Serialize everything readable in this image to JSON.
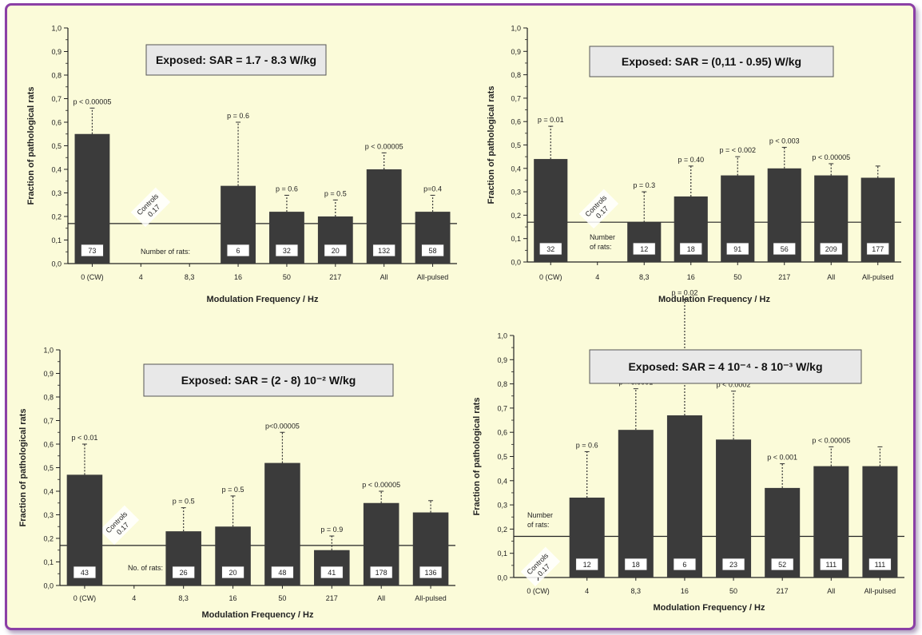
{
  "chart_data": [
    {
      "type": "bar",
      "title": "Exposed: SAR = 1.7 - 8.3  W/kg",
      "xlabel": "Modulation Frequency / Hz",
      "ylabel": "Fraction of pathological rats",
      "ylim": [
        0,
        1.0
      ],
      "yticks": [
        "0,0",
        "0,1",
        "0,2",
        "0,3",
        "0,4",
        "0,5",
        "0,6",
        "0,7",
        "0,8",
        "0,9",
        "1,0"
      ],
      "categories": [
        "0 (CW)",
        "4",
        "8,3",
        "16",
        "50",
        "217",
        "All",
        "All-pulsed"
      ],
      "values": [
        0.55,
        null,
        null,
        0.33,
        0.22,
        0.2,
        0.4,
        0.22
      ],
      "error_top": [
        0.66,
        null,
        null,
        0.6,
        0.29,
        0.27,
        0.47,
        0.29
      ],
      "pvalues": [
        "p < 0.00005",
        "",
        "",
        "p = 0.6",
        "p = 0.6",
        "p = 0.5",
        "p < 0.00005",
        "p=0.4"
      ],
      "counts": [
        "73",
        "",
        "",
        "6",
        "32",
        "20",
        "132",
        "58"
      ],
      "rats_label": [
        "Number of rats:"
      ],
      "controls_label": [
        "Controls",
        "0.17"
      ],
      "controls_value": 0.17
    },
    {
      "type": "bar",
      "title": "Exposed: SAR = (0,11 - 0.95)  W/kg",
      "xlabel": "Modulation Frequency / Hz",
      "ylabel": "Fraction of pathological rats",
      "ylim": [
        0,
        1.0
      ],
      "yticks": [
        "0,0",
        "0,1",
        "0,2",
        "0,3",
        "0,4",
        "0,5",
        "0,6",
        "0,7",
        "0,8",
        "0,9",
        "1,0"
      ],
      "categories": [
        "0 (CW)",
        "4",
        "8,3",
        "16",
        "50",
        "217",
        "All",
        "All-pulsed"
      ],
      "values": [
        0.44,
        null,
        0.17,
        0.28,
        0.37,
        0.4,
        0.37,
        0.36
      ],
      "error_top": [
        0.58,
        null,
        0.3,
        0.41,
        0.45,
        0.49,
        0.42,
        0.41
      ],
      "pvalues": [
        "p = 0.01",
        "",
        "p = 0.3",
        "p = 0.40",
        "p = < 0.002",
        "p < 0.003",
        "p < 0.00005",
        ""
      ],
      "counts": [
        "32",
        "",
        "12",
        "18",
        "91",
        "56",
        "209",
        "177"
      ],
      "rats_label": [
        "Number",
        "of rats:"
      ],
      "controls_label": [
        "Controls",
        "0.17"
      ],
      "controls_value": 0.17
    },
    {
      "type": "bar",
      "title": "Exposed: SAR = (2 - 8) 10⁻²  W/kg",
      "xlabel": "Modulation Frequency / Hz",
      "ylabel": "Fraction of pathological rats",
      "ylim": [
        0,
        1.0
      ],
      "yticks": [
        "0,0",
        "0,1",
        "0,2",
        "0,3",
        "0,4",
        "0,5",
        "0,6",
        "0,7",
        "0,8",
        "0,9",
        "1,0"
      ],
      "categories": [
        "0 (CW)",
        "4",
        "8,3",
        "16",
        "50",
        "217",
        "All",
        "All-pulsed"
      ],
      "values": [
        0.47,
        null,
        0.23,
        0.25,
        0.52,
        0.15,
        0.35,
        0.31
      ],
      "error_top": [
        0.6,
        null,
        0.33,
        0.38,
        0.65,
        0.21,
        0.4,
        0.36
      ],
      "pvalues": [
        "p < 0.01",
        "",
        "p = 0.5",
        "p = 0.5",
        "p<0.00005",
        "p = 0.9",
        "p < 0.00005",
        ""
      ],
      "counts": [
        "43",
        "",
        "26",
        "20",
        "48",
        "41",
        "178",
        "136"
      ],
      "rats_label": [
        "No. of rats:"
      ],
      "controls_label": [
        "Controls",
        "0.17"
      ],
      "controls_value": 0.17
    },
    {
      "type": "bar",
      "title": "Exposed: SAR = 4 10⁻⁴ - 8 10⁻³  W/kg",
      "xlabel": "Modulation Frequency / Hz",
      "ylabel": "Fraction of pathological rats",
      "ylim": [
        0,
        1.0
      ],
      "yticks": [
        "0,0",
        "0,1",
        "0,2",
        "0,3",
        "0,4",
        "0,5",
        "0,6",
        "0,7",
        "0,8",
        "0,9",
        "1,0"
      ],
      "categories": [
        "0 (CW)",
        "4",
        "8,3",
        "16",
        "50",
        "217",
        "All",
        "All-pulsed"
      ],
      "values": [
        null,
        0.33,
        0.61,
        0.67,
        0.57,
        0.37,
        0.46,
        0.46
      ],
      "error_top": [
        null,
        0.52,
        0.78,
        1.15,
        0.77,
        0.47,
        0.54,
        0.54
      ],
      "pvalues": [
        "",
        "p = 0.6",
        "p < 0.0001",
        "p = 0.02",
        "p < 0.0002",
        "p < 0.001",
        "p < 0.00005",
        ""
      ],
      "counts": [
        "",
        "12",
        "18",
        "6",
        "23",
        "52",
        "111",
        "111"
      ],
      "rats_label": [
        "Number",
        "of rats:"
      ],
      "controls_label": [
        "Controls",
        "0.17"
      ],
      "controls_value": 0.17
    }
  ],
  "colors": {
    "bar": "#3b3b3b",
    "panel_bg": "#fbfbd9",
    "title_box": "#e8e8e8",
    "frame": "#8b3fa6",
    "axis": "#222222"
  }
}
